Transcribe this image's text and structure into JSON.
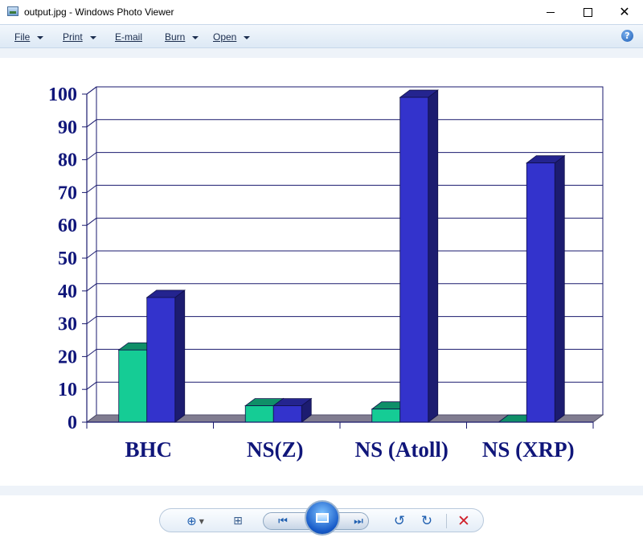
{
  "window": {
    "title": "output.jpg - Windows Photo Viewer"
  },
  "menu": {
    "items": [
      {
        "label": "File",
        "has_dropdown": true
      },
      {
        "label": "Print",
        "has_dropdown": true
      },
      {
        "label": "E-mail",
        "has_dropdown": false
      },
      {
        "label": "Burn",
        "has_dropdown": true
      },
      {
        "label": "Open",
        "has_dropdown": true
      }
    ],
    "help_glyph": "?"
  },
  "icons": {
    "app": "photo-viewer-icon",
    "help": "help-icon",
    "zoom": "magnifier-icon",
    "fit": "actual-size-icon",
    "previous": "previous-icon",
    "slideshow": "slideshow-icon",
    "next": "next-icon",
    "rotate_left": "rotate-counterclockwise-icon",
    "rotate_right": "rotate-clockwise-icon",
    "delete": "delete-icon"
  },
  "colors": {
    "series_1": "#15cc95",
    "series_2": "#3333cc",
    "axis_text": "#10167a",
    "floor": "#807c90"
  },
  "chart_data": {
    "type": "bar",
    "style": "3d-clustered",
    "categories": [
      "BHC",
      "NS(Z)",
      "NS (Atoll)",
      "NS (XRP)"
    ],
    "series": [
      {
        "values": [
          22,
          5,
          4,
          0
        ]
      },
      {
        "values": [
          38,
          5,
          99,
          79
        ]
      }
    ],
    "ylim": [
      0,
      100
    ],
    "yticks": [
      0,
      10,
      20,
      30,
      40,
      50,
      60,
      70,
      80,
      90,
      100
    ],
    "grid": true,
    "legend": "none",
    "title": "",
    "xlabel": "",
    "ylabel": ""
  }
}
